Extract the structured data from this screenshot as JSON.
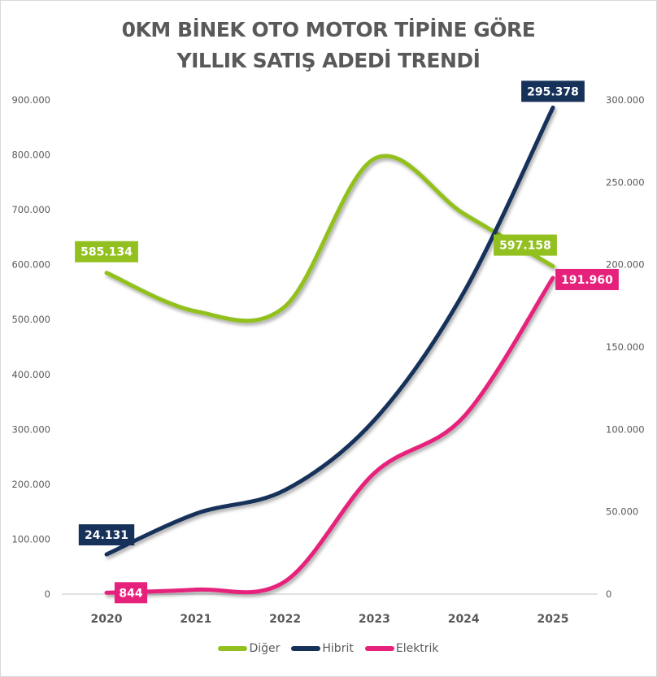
{
  "chart_data": {
    "type": "line",
    "title_lines": [
      "0KM BİNEK OTO MOTOR TİPİNE GÖRE",
      "YILLIK SATIŞ ADEDİ TRENDİ"
    ],
    "categories": [
      "2020",
      "2021",
      "2022",
      "2023",
      "2024",
      "2025"
    ],
    "series": [
      {
        "name": "Diğer",
        "axis": "left",
        "color": "#92c01f",
        "values": [
          585134,
          515000,
          524000,
          793000,
          693000,
          597158
        ],
        "labels": {
          "0": "585.134",
          "5": "597.158"
        }
      },
      {
        "name": "Hibrit",
        "axis": "right",
        "color": "#17325a",
        "values": [
          24131,
          48800,
          63200,
          105600,
          183000,
          295378
        ],
        "labels": {
          "0": "24.131",
          "5": "295.378"
        }
      },
      {
        "name": "Elektrik",
        "axis": "right",
        "color": "#e6217b",
        "values": [
          844,
          2700,
          7700,
          73500,
          107600,
          191960
        ],
        "labels": {
          "0": "844",
          "5": "191.960"
        }
      }
    ],
    "left_axis": {
      "range": [
        0,
        900000
      ],
      "ticks": [
        "0",
        "100.000",
        "200.000",
        "300.000",
        "400.000",
        "500.000",
        "600.000",
        "700.000",
        "800.000",
        "900.000"
      ]
    },
    "right_axis": {
      "range": [
        0,
        300000
      ],
      "ticks": [
        "0",
        "50.000",
        "100.000",
        "150.000",
        "200.000",
        "250.000",
        "300.000"
      ]
    },
    "smooth": true,
    "grid": false,
    "legend_position": "bottom"
  }
}
